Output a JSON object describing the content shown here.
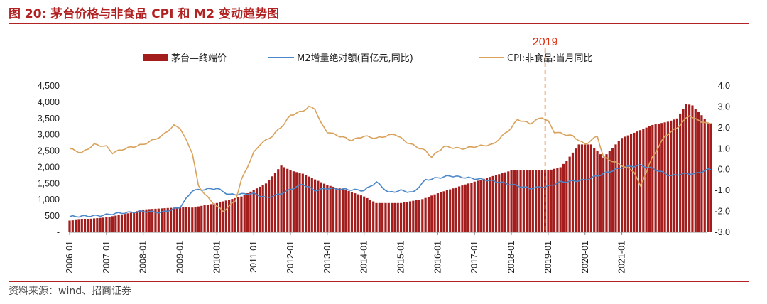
{
  "header": {
    "title": "图 20:  茅台价格与非食品 CPI 和 M2 变动趋势图",
    "source": "资料来源：wind、招商证券"
  },
  "colors": {
    "bar": "#a31d1d",
    "m2": "#4a86c8",
    "cpi": "#d9a25c",
    "marker": "#e0701f",
    "accent": "#b22222",
    "marker_text": "#e03010"
  },
  "chart_data": {
    "type": "bar+line",
    "title": "茅台价格与非食品 CPI 和 M2 变动趋势图",
    "annotation": {
      "label": "2019",
      "x_index": 155
    },
    "x_tick_labels": [
      "2006-01",
      "2007-01",
      "2008-01",
      "2009-01",
      "2010-01",
      "2011-01",
      "2012-01",
      "2013-01",
      "2014-01",
      "2015-01",
      "2016-01",
      "2017-01",
      "2018-01",
      "2019-01",
      "2020-01",
      "2021-01"
    ],
    "y_left": {
      "ticks": [
        "-",
        "500",
        "1,000",
        "1,500",
        "2,000",
        "2,500",
        "3,000",
        "3,500",
        "4,000",
        "4,500"
      ],
      "range": [
        0,
        4500
      ]
    },
    "y_right": {
      "ticks": [
        "-3.0",
        "-2.0",
        "-1.0",
        "0.0",
        "1.0",
        "2.0",
        "3.0",
        "4.0"
      ],
      "range": [
        -3,
        4
      ]
    },
    "legend": [
      "茅台—终端价",
      "M2增量绝对额(百亿元,同比)",
      "CPI:非食品:当月同比"
    ],
    "series": [
      {
        "name": "茅台—终端价",
        "type": "bar",
        "axis": "left",
        "keypoints": [
          [
            0,
            360
          ],
          [
            12,
            460
          ],
          [
            20,
            600
          ],
          [
            24,
            700
          ],
          [
            36,
            770
          ],
          [
            40,
            760
          ],
          [
            48,
            900
          ],
          [
            56,
            1100
          ],
          [
            64,
            1500
          ],
          [
            69,
            2050
          ],
          [
            72,
            1900
          ],
          [
            76,
            1800
          ],
          [
            84,
            1450
          ],
          [
            90,
            1300
          ],
          [
            96,
            1100
          ],
          [
            100,
            900
          ],
          [
            108,
            900
          ],
          [
            115,
            1020
          ],
          [
            120,
            1200
          ],
          [
            130,
            1500
          ],
          [
            144,
            1900
          ],
          [
            152,
            1900
          ],
          [
            156,
            1900
          ],
          [
            160,
            2000
          ],
          [
            162,
            2200
          ],
          [
            166,
            2700
          ],
          [
            170,
            2700
          ],
          [
            174,
            2300
          ],
          [
            180,
            2900
          ],
          [
            185,
            3100
          ],
          [
            190,
            3300
          ],
          [
            195,
            3400
          ],
          [
            198,
            3500
          ],
          [
            201,
            3950
          ],
          [
            203,
            3900
          ],
          [
            206,
            3600
          ],
          [
            208,
            3350
          ]
        ]
      },
      {
        "name": "M2增量绝对额(百亿元,同比)",
        "type": "line",
        "axis": "right",
        "keypoints": [
          [
            0,
            -2.25
          ],
          [
            10,
            -2.2
          ],
          [
            15,
            -2.1
          ],
          [
            24,
            -2.0
          ],
          [
            30,
            -2.05
          ],
          [
            36,
            -1.8
          ],
          [
            40,
            -1.0
          ],
          [
            48,
            -0.9
          ],
          [
            52,
            -1.2
          ],
          [
            60,
            -1.15
          ],
          [
            64,
            -1.35
          ],
          [
            68,
            -1.2
          ],
          [
            76,
            -0.7
          ],
          [
            80,
            -1.0
          ],
          [
            84,
            -0.9
          ],
          [
            90,
            -0.95
          ],
          [
            96,
            -1.0
          ],
          [
            100,
            -0.6
          ],
          [
            104,
            -1.1
          ],
          [
            108,
            -1.0
          ],
          [
            112,
            -1.1
          ],
          [
            116,
            -0.5
          ],
          [
            120,
            -0.4
          ],
          [
            124,
            -0.3
          ],
          [
            130,
            -0.4
          ],
          [
            136,
            -0.5
          ],
          [
            140,
            -0.6
          ],
          [
            150,
            -0.9
          ],
          [
            156,
            -0.8
          ],
          [
            160,
            -0.6
          ],
          [
            168,
            -0.5
          ],
          [
            172,
            -0.3
          ],
          [
            180,
            0.1
          ],
          [
            186,
            0.2
          ],
          [
            190,
            0.05
          ],
          [
            196,
            -0.3
          ],
          [
            200,
            -0.2
          ],
          [
            204,
            -0.2
          ],
          [
            208,
            0.0
          ]
        ]
      },
      {
        "name": "CPI:非食品:当月同比",
        "type": "line",
        "axis": "right",
        "keypoints": [
          [
            0,
            1.0
          ],
          [
            4,
            0.8
          ],
          [
            8,
            1.2
          ],
          [
            12,
            1.1
          ],
          [
            14,
            0.8
          ],
          [
            18,
            1.0
          ],
          [
            24,
            1.2
          ],
          [
            30,
            1.6
          ],
          [
            34,
            2.1
          ],
          [
            36,
            2.0
          ],
          [
            40,
            0.8
          ],
          [
            42,
            -0.8
          ],
          [
            46,
            -1.5
          ],
          [
            50,
            -2.0
          ],
          [
            54,
            -1.5
          ],
          [
            56,
            -0.5
          ],
          [
            60,
            0.8
          ],
          [
            62,
            1.2
          ],
          [
            66,
            1.6
          ],
          [
            70,
            2.2
          ],
          [
            72,
            2.6
          ],
          [
            76,
            2.8
          ],
          [
            78,
            3.0
          ],
          [
            80,
            2.9
          ],
          [
            82,
            2.2
          ],
          [
            84,
            1.8
          ],
          [
            88,
            1.6
          ],
          [
            92,
            1.4
          ],
          [
            96,
            1.6
          ],
          [
            100,
            1.5
          ],
          [
            106,
            1.7
          ],
          [
            110,
            1.3
          ],
          [
            116,
            0.9
          ],
          [
            118,
            0.6
          ],
          [
            122,
            1.1
          ],
          [
            128,
            1.0
          ],
          [
            132,
            1.1
          ],
          [
            138,
            1.2
          ],
          [
            144,
            2.0
          ],
          [
            146,
            2.4
          ],
          [
            150,
            2.2
          ],
          [
            154,
            2.5
          ],
          [
            156,
            2.3
          ],
          [
            158,
            1.8
          ],
          [
            164,
            1.6
          ],
          [
            168,
            1.2
          ],
          [
            172,
            1.6
          ],
          [
            174,
            0.6
          ],
          [
            180,
            0.2
          ],
          [
            184,
            -0.1
          ],
          [
            186,
            -0.8
          ],
          [
            190,
            0.6
          ],
          [
            194,
            1.6
          ],
          [
            198,
            2.0
          ],
          [
            202,
            2.6
          ],
          [
            204,
            2.4
          ],
          [
            208,
            2.2
          ]
        ]
      }
    ]
  }
}
